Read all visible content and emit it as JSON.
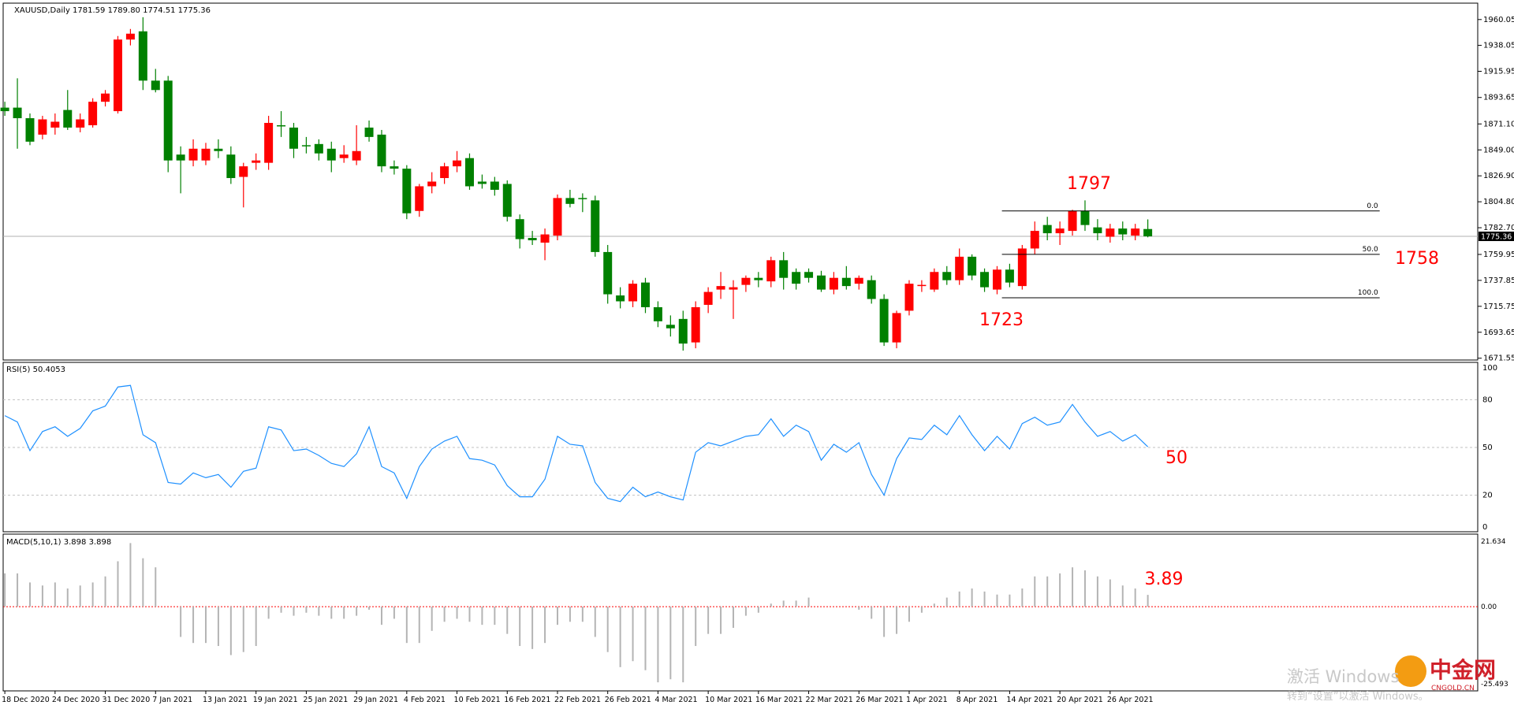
{
  "header": "XAUUSD,Daily  1781.59 1789.80 1774.51 1775.36",
  "chart_data": {
    "type": "candlestick",
    "up_color": "#ff0000",
    "down_color": "#008000",
    "categories": [
      "18 Dec 2020",
      null,
      null,
      null,
      "24 Dec 2020",
      null,
      null,
      null,
      "31 Dec 2020",
      null,
      null,
      null,
      "7 Jan 2021",
      null,
      null,
      null,
      "13 Jan 2021",
      null,
      null,
      null,
      "19 Jan 2021",
      null,
      null,
      null,
      "25 Jan 2021",
      null,
      null,
      null,
      "29 Jan 2021",
      null,
      null,
      null,
      "4 Feb 2021",
      null,
      null,
      null,
      "10 Feb 2021",
      null,
      null,
      null,
      "16 Feb 2021",
      null,
      null,
      null,
      "22 Feb 2021",
      null,
      null,
      null,
      "26 Feb 2021",
      null,
      null,
      null,
      "4 Mar 2021",
      null,
      null,
      null,
      "10 Mar 2021",
      null,
      null,
      null,
      "16 Mar 2021",
      null,
      null,
      null,
      "22 Mar 2021",
      null,
      null,
      null,
      "26 Mar 2021",
      null,
      null,
      null,
      "1 Apr 2021",
      null,
      null,
      null,
      "8 Apr 2021",
      null,
      null,
      null,
      "14 Apr 2021",
      null,
      null,
      null,
      "20 Apr 2021",
      null,
      null,
      null,
      "26 Apr 2021",
      null,
      null,
      null
    ],
    "ohlc": [
      [
        1885,
        1890,
        1878,
        1882
      ],
      [
        1885,
        1910,
        1850,
        1876
      ],
      [
        1876,
        1880,
        1853,
        1856
      ],
      [
        1862,
        1878,
        1858,
        1875
      ],
      [
        1868,
        1880,
        1862,
        1873
      ],
      [
        1883,
        1900,
        1866,
        1868
      ],
      [
        1868,
        1880,
        1864,
        1875
      ],
      [
        1870,
        1893,
        1868,
        1890
      ],
      [
        1890,
        1900,
        1886,
        1897
      ],
      [
        1882,
        1946,
        1880,
        1943
      ],
      [
        1943,
        1952,
        1938,
        1948
      ],
      [
        1950,
        1962,
        1900,
        1908
      ],
      [
        1908,
        1918,
        1898,
        1900
      ],
      [
        1908,
        1912,
        1830,
        1840
      ],
      [
        1845,
        1852,
        1812,
        1840
      ],
      [
        1840,
        1858,
        1835,
        1850
      ],
      [
        1840,
        1855,
        1836,
        1850
      ],
      [
        1850,
        1858,
        1842,
        1848
      ],
      [
        1845,
        1852,
        1820,
        1825
      ],
      [
        1826,
        1838,
        1800,
        1835
      ],
      [
        1838,
        1846,
        1832,
        1840
      ],
      [
        1838,
        1878,
        1832,
        1872
      ],
      [
        1870,
        1882,
        1860,
        1869
      ],
      [
        1868,
        1872,
        1842,
        1850
      ],
      [
        1853,
        1860,
        1846,
        1852
      ],
      [
        1854,
        1858,
        1840,
        1846
      ],
      [
        1850,
        1856,
        1830,
        1840
      ],
      [
        1842,
        1853,
        1838,
        1845
      ],
      [
        1840,
        1870,
        1836,
        1848
      ],
      [
        1868,
        1874,
        1856,
        1860
      ],
      [
        1862,
        1866,
        1830,
        1835
      ],
      [
        1835,
        1840,
        1828,
        1833
      ],
      [
        1833,
        1836,
        1790,
        1795
      ],
      [
        1797,
        1820,
        1792,
        1818
      ],
      [
        1818,
        1830,
        1812,
        1822
      ],
      [
        1825,
        1838,
        1820,
        1835
      ],
      [
        1835,
        1848,
        1830,
        1840
      ],
      [
        1842,
        1846,
        1815,
        1818
      ],
      [
        1822,
        1828,
        1816,
        1820
      ],
      [
        1822,
        1826,
        1810,
        1815
      ],
      [
        1820,
        1823,
        1788,
        1792
      ],
      [
        1790,
        1794,
        1765,
        1773
      ],
      [
        1774,
        1780,
        1768,
        1772
      ],
      [
        1770,
        1782,
        1755,
        1777
      ],
      [
        1776,
        1811,
        1772,
        1808
      ],
      [
        1808,
        1815,
        1800,
        1803
      ],
      [
        1808,
        1812,
        1796,
        1807
      ],
      [
        1806,
        1810,
        1758,
        1762
      ],
      [
        1762,
        1768,
        1718,
        1726
      ],
      [
        1725,
        1732,
        1714,
        1720
      ],
      [
        1720,
        1738,
        1715,
        1735
      ],
      [
        1736,
        1740,
        1710,
        1715
      ],
      [
        1715,
        1720,
        1698,
        1703
      ],
      [
        1700,
        1708,
        1690,
        1697
      ],
      [
        1705,
        1712,
        1678,
        1684
      ],
      [
        1685,
        1720,
        1680,
        1715
      ],
      [
        1717,
        1732,
        1710,
        1728
      ],
      [
        1730,
        1745,
        1722,
        1733
      ],
      [
        1730,
        1738,
        1705,
        1732
      ],
      [
        1734,
        1742,
        1728,
        1740
      ],
      [
        1740,
        1745,
        1732,
        1738
      ],
      [
        1737,
        1758,
        1732,
        1755
      ],
      [
        1755,
        1762,
        1730,
        1740
      ],
      [
        1745,
        1748,
        1730,
        1735
      ],
      [
        1745,
        1748,
        1736,
        1740
      ],
      [
        1742,
        1746,
        1728,
        1730
      ],
      [
        1730,
        1745,
        1726,
        1740
      ],
      [
        1740,
        1750,
        1730,
        1733
      ],
      [
        1735,
        1742,
        1730,
        1740
      ],
      [
        1738,
        1742,
        1718,
        1722
      ],
      [
        1722,
        1726,
        1682,
        1685
      ],
      [
        1685,
        1712,
        1680,
        1710
      ],
      [
        1712,
        1738,
        1708,
        1735
      ],
      [
        1733,
        1738,
        1728,
        1734
      ],
      [
        1730,
        1748,
        1728,
        1745
      ],
      [
        1745,
        1750,
        1734,
        1738
      ],
      [
        1738,
        1765,
        1734,
        1758
      ],
      [
        1758,
        1760,
        1738,
        1742
      ],
      [
        1745,
        1748,
        1728,
        1732
      ],
      [
        1730,
        1750,
        1726,
        1747
      ],
      [
        1747,
        1752,
        1732,
        1736
      ],
      [
        1733,
        1768,
        1730,
        1765
      ],
      [
        1765,
        1788,
        1760,
        1780
      ],
      [
        1785,
        1792,
        1772,
        1778
      ],
      [
        1778,
        1788,
        1768,
        1782
      ],
      [
        1780,
        1798,
        1776,
        1797
      ],
      [
        1797,
        1806,
        1780,
        1785
      ],
      [
        1783,
        1790,
        1772,
        1778
      ],
      [
        1775,
        1786,
        1770,
        1782
      ],
      [
        1782,
        1788,
        1772,
        1777
      ],
      [
        1776,
        1786,
        1772,
        1782
      ],
      [
        1781.59,
        1789.8,
        1774.51,
        1775.36
      ]
    ],
    "ylim": [
      1670,
      1974
    ],
    "yticks": [
      1960.05,
      1938.05,
      1915.95,
      1893.65,
      {
        "value": 1871.1,
        "label": "1871.10"
      },
      {
        "value": 1849,
        "label": "1849.00"
      },
      {
        "value": 1826.9,
        "label": "1826.90"
      },
      {
        "value": 1804.8,
        "label": "1804.80"
      },
      {
        "value": 1782.7,
        "label": "1782.70"
      },
      1759.95,
      1737.85,
      1715.75,
      1693.65,
      1671.55
    ],
    "last_price": 1775.36,
    "fib_levels": [
      {
        "price": 1797,
        "label": "0.0"
      },
      {
        "price": 1760,
        "label": "50.0"
      },
      {
        "price": 1723,
        "label": "100.0"
      }
    ],
    "annotations": [
      "1797",
      "1758",
      "1723",
      "50",
      "3.89"
    ],
    "rsi": {
      "title": "RSI(5) 50.4053",
      "color": "#1e90ff",
      "ylim": [
        0,
        100
      ],
      "yticks": [
        0,
        20,
        50,
        80,
        100
      ],
      "values": [
        70,
        66,
        48,
        60,
        63,
        57,
        62,
        73,
        76,
        88,
        89,
        58,
        53,
        28,
        27,
        34,
        31,
        33,
        25,
        35,
        37,
        63,
        61,
        48,
        49,
        45,
        40,
        38,
        46,
        63,
        38,
        34,
        18,
        38,
        49,
        54,
        57,
        43,
        42,
        39,
        26,
        19,
        19,
        30,
        57,
        52,
        51,
        28,
        18,
        16,
        25,
        19,
        22,
        19,
        17,
        47,
        53,
        51,
        54,
        57,
        58,
        68,
        57,
        64,
        60,
        42,
        52,
        47,
        53,
        33,
        20,
        43,
        56,
        55,
        64,
        58,
        70,
        58,
        48,
        57,
        49,
        65,
        69,
        64,
        66,
        77,
        66,
        57,
        60,
        54,
        58,
        50.4053
      ]
    },
    "macd": {
      "title": "MACD(5,10,1) 3.898 3.898",
      "color": "#b4b4b4",
      "ylim": [
        -25.493,
        21.634
      ],
      "yticks": [
        21.634,
        {
          "value": 0,
          "label": "0.00"
        },
        -25.493
      ],
      "values": [
        11,
        11,
        8,
        7,
        8,
        6,
        7,
        8,
        10,
        15,
        21,
        16,
        13,
        0,
        -10,
        -12,
        -12,
        -13,
        -16,
        -15,
        -13,
        -4,
        -2,
        -3,
        -2,
        -3,
        -4,
        -4,
        -3,
        -1,
        -6,
        -4,
        -12,
        -12,
        -8,
        -5,
        -4,
        -5,
        -6,
        -6,
        -9,
        -13,
        -14,
        -12,
        -6,
        -5,
        -5,
        -10,
        -15,
        -20,
        -18,
        -21,
        -25,
        -24,
        -25,
        -13,
        -9,
        -9,
        -7,
        -3,
        -2,
        1,
        2,
        2,
        3,
        0,
        0,
        0,
        -1,
        -4,
        -10,
        -9,
        -5,
        -2,
        1,
        3,
        5,
        6,
        5,
        4,
        4,
        6,
        10,
        10,
        11,
        13,
        12,
        10,
        9,
        7,
        6,
        3.898
      ]
    }
  },
  "watermark": {
    "line1": "激活 Windows",
    "line2": "转到“设置”以激活 Windows。",
    "logo": "中金网",
    "logo_sub": "CNGOLD.CN"
  }
}
